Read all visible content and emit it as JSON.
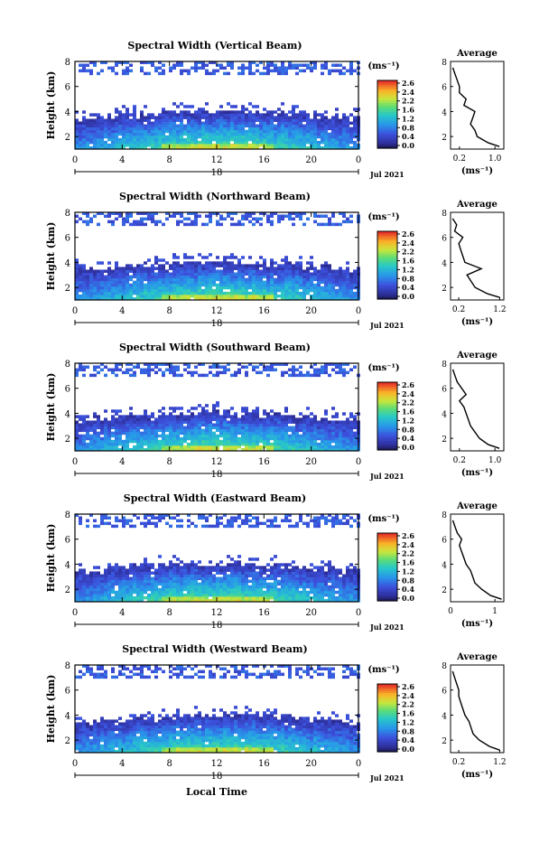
{
  "figure": {
    "xlabel_bottom": "Local Time",
    "y_axis_label": "Height (km)",
    "colorbar_unit": "(ms⁻¹)",
    "average_title": "Average",
    "average_xlabel": "(ms⁻¹)"
  },
  "chart_data": [
    {
      "type": "heatmap",
      "title": "Spectral Width (Vertical Beam)",
      "xlabel": "",
      "ylabel": "Height (km)",
      "x_ticks": [
        "0",
        "4",
        "8",
        "12",
        "16",
        "20",
        "0"
      ],
      "x_date_label": "Jul 2021",
      "x_day_label": "18",
      "xlim": [
        0,
        24
      ],
      "ylim": [
        1,
        8
      ],
      "y_ticks": [
        "2",
        "4",
        "6",
        "8"
      ],
      "colorbar": {
        "min": 0.0,
        "max": 2.8,
        "ticks": [
          "2.6",
          "2.4",
          "2.2",
          "1.6",
          "1.2",
          "0.8",
          "0.4",
          "0.0"
        ],
        "unit": "(ms⁻¹)"
      },
      "average_profile": {
        "title": "Average",
        "xlabel": "(ms⁻¹)",
        "x_ticks": [
          "0.2",
          "1.0"
        ],
        "xlim": [
          0,
          1.2
        ],
        "y_ticks": [
          "2",
          "4",
          "6",
          "8"
        ],
        "ylim": [
          1,
          8
        ],
        "height_km": [
          1.2,
          1.5,
          2.0,
          2.5,
          3.0,
          3.5,
          4.0,
          4.5,
          5.0,
          5.5,
          6.0,
          6.5,
          7.0,
          7.5
        ],
        "width_ms": [
          1.1,
          0.85,
          0.6,
          0.55,
          0.45,
          0.5,
          0.55,
          0.3,
          0.35,
          0.2,
          0.2,
          0.15,
          0.1,
          0.05
        ]
      }
    },
    {
      "type": "heatmap",
      "title": "Spectral Width (Northward Beam)",
      "xlabel": "",
      "ylabel": "Height (km)",
      "x_ticks": [
        "0",
        "4",
        "8",
        "12",
        "16",
        "20",
        "0"
      ],
      "x_date_label": "Jul 2021",
      "x_day_label": "18",
      "xlim": [
        0,
        24
      ],
      "ylim": [
        1,
        8
      ],
      "y_ticks": [
        "2",
        "4",
        "6",
        "8"
      ],
      "colorbar": {
        "min": 0.0,
        "max": 2.8,
        "ticks": [
          "2.6",
          "2.4",
          "2.2",
          "1.6",
          "1.2",
          "0.8",
          "0.4",
          "0.0"
        ],
        "unit": "(ms⁻¹)"
      },
      "average_profile": {
        "title": "Average",
        "xlabel": "(ms⁻¹)",
        "x_ticks": [
          "0.2",
          "1.2"
        ],
        "xlim": [
          0,
          1.3
        ],
        "y_ticks": [
          "2",
          "4",
          "6",
          "8"
        ],
        "ylim": [
          1,
          8
        ],
        "height_km": [
          1.2,
          1.5,
          2.0,
          2.5,
          3.0,
          3.5,
          4.0,
          4.5,
          5.0,
          5.5,
          6.0,
          6.5,
          7.0,
          7.5
        ],
        "width_ms": [
          1.2,
          0.9,
          0.6,
          0.5,
          0.4,
          0.75,
          0.35,
          0.3,
          0.25,
          0.2,
          0.3,
          0.1,
          0.15,
          0.05
        ]
      }
    },
    {
      "type": "heatmap",
      "title": "Spectral Width (Southward Beam)",
      "xlabel": "",
      "ylabel": "Height (km)",
      "x_ticks": [
        "0",
        "4",
        "8",
        "12",
        "16",
        "20",
        "0"
      ],
      "x_date_label": "Jul 2021",
      "x_day_label": "18",
      "xlim": [
        0,
        24
      ],
      "ylim": [
        1,
        8
      ],
      "y_ticks": [
        "2",
        "4",
        "6",
        "8"
      ],
      "colorbar": {
        "min": 0.0,
        "max": 2.8,
        "ticks": [
          "2.6",
          "2.4",
          "2.2",
          "1.6",
          "1.2",
          "0.8",
          "0.4",
          "0.0"
        ],
        "unit": "(ms⁻¹)"
      },
      "average_profile": {
        "title": "Average",
        "xlabel": "(ms⁻¹)",
        "x_ticks": [
          "0.2",
          "1.0"
        ],
        "xlim": [
          0,
          1.2
        ],
        "y_ticks": [
          "2",
          "4",
          "6",
          "8"
        ],
        "ylim": [
          1,
          8
        ],
        "height_km": [
          1.2,
          1.5,
          2.0,
          2.5,
          3.0,
          3.5,
          4.0,
          4.5,
          5.0,
          5.5,
          6.0,
          6.5,
          7.0,
          7.5
        ],
        "width_ms": [
          1.1,
          0.85,
          0.65,
          0.55,
          0.45,
          0.4,
          0.35,
          0.3,
          0.2,
          0.35,
          0.25,
          0.15,
          0.1,
          0.05
        ]
      }
    },
    {
      "type": "heatmap",
      "title": "Spectral Width (Eastward Beam)",
      "xlabel": "",
      "ylabel": "Height (km)",
      "x_ticks": [
        "0",
        "4",
        "8",
        "12",
        "16",
        "20",
        "0"
      ],
      "x_date_label": "Jul 2021",
      "x_day_label": "18",
      "xlim": [
        0,
        24
      ],
      "ylim": [
        1,
        8
      ],
      "y_ticks": [
        "2",
        "4",
        "6",
        "8"
      ],
      "colorbar": {
        "min": 0.0,
        "max": 2.8,
        "ticks": [
          "2.6",
          "2.4",
          "2.2",
          "1.6",
          "1.2",
          "0.8",
          "0.4",
          "0.0"
        ],
        "unit": "(ms⁻¹)"
      },
      "average_profile": {
        "title": "Average",
        "xlabel": "(ms⁻¹)",
        "x_ticks": [
          "0",
          "1"
        ],
        "xlim": [
          0,
          1.2
        ],
        "y_ticks": [
          "2",
          "4",
          "6",
          "8"
        ],
        "ylim": [
          1,
          8
        ],
        "height_km": [
          1.2,
          1.5,
          2.0,
          2.5,
          3.0,
          3.5,
          4.0,
          4.5,
          5.0,
          5.5,
          6.0,
          6.5,
          7.0,
          7.5
        ],
        "width_ms": [
          1.15,
          0.9,
          0.7,
          0.55,
          0.5,
          0.45,
          0.35,
          0.3,
          0.25,
          0.2,
          0.25,
          0.15,
          0.1,
          0.05
        ]
      }
    },
    {
      "type": "heatmap",
      "title": "Spectral Width (Westward Beam)",
      "xlabel": "Local Time",
      "ylabel": "Height (km)",
      "x_ticks": [
        "0",
        "4",
        "8",
        "12",
        "16",
        "20",
        "0"
      ],
      "x_date_label": "Jul 2021",
      "x_day_label": "18",
      "xlim": [
        0,
        24
      ],
      "ylim": [
        1,
        8
      ],
      "y_ticks": [
        "2",
        "4",
        "6",
        "8"
      ],
      "colorbar": {
        "min": 0.0,
        "max": 2.8,
        "ticks": [
          "2.6",
          "2.4",
          "2.2",
          "1.6",
          "1.2",
          "0.8",
          "0.4",
          "0.0"
        ],
        "unit": "(ms⁻¹)"
      },
      "average_profile": {
        "title": "Average",
        "xlabel": "(ms⁻¹)",
        "x_ticks": [
          "0.2",
          "1.2"
        ],
        "xlim": [
          0,
          1.3
        ],
        "y_ticks": [
          "2",
          "4",
          "6",
          "8"
        ],
        "ylim": [
          1,
          8
        ],
        "height_km": [
          1.2,
          1.5,
          2.0,
          2.5,
          3.0,
          3.5,
          4.0,
          4.5,
          5.0,
          5.5,
          6.0,
          6.5,
          7.0,
          7.5
        ],
        "width_ms": [
          1.2,
          0.95,
          0.7,
          0.55,
          0.5,
          0.45,
          0.35,
          0.3,
          0.25,
          0.2,
          0.2,
          0.15,
          0.1,
          0.05
        ]
      }
    }
  ]
}
